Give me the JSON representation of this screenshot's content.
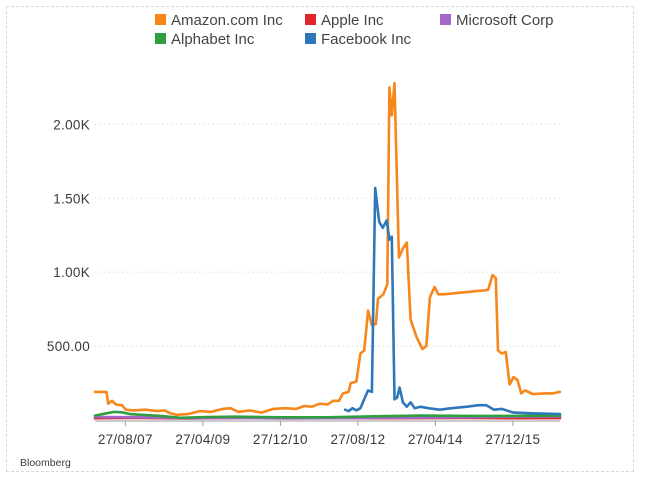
{
  "source": "Bloomberg",
  "colors": {
    "amazon": "#f7861b",
    "apple": "#e0262b",
    "microsoft": "#a566c9",
    "alphabet": "#2f9e3e",
    "facebook": "#2e77b8",
    "grid": "#dcdcdc",
    "axis": "#9a9a9a"
  },
  "chart_data": {
    "type": "line",
    "title": "",
    "xlabel": "",
    "ylabel": "",
    "ylim": [
      0,
      2300
    ],
    "y_ticks": [
      500,
      1000,
      1500,
      2000
    ],
    "y_tick_labels": [
      "500.00",
      "1.00K",
      "1.50K",
      "2.00K"
    ],
    "x_range": [
      "2007-01-01",
      "2016-12-31"
    ],
    "x_ticks": [
      "2007-08-27",
      "2009-04-27",
      "2010-12-27",
      "2012-08-27",
      "2014-04-27",
      "2015-12-27"
    ],
    "x_tick_labels": [
      "27/08/07",
      "27/04/09",
      "27/12/10",
      "27/08/12",
      "27/04/14",
      "27/12/15"
    ],
    "grid": "horizontal dotted",
    "legend_position": "top",
    "series": [
      {
        "name": "Amazon.com Inc",
        "color": "#f7861b",
        "points": [
          [
            "2007-01-01",
            190
          ],
          [
            "2007-04-01",
            190
          ],
          [
            "2007-04-15",
            110
          ],
          [
            "2007-05-15",
            130
          ],
          [
            "2007-06-15",
            105
          ],
          [
            "2007-08-01",
            100
          ],
          [
            "2007-09-01",
            70
          ],
          [
            "2007-11-01",
            65
          ],
          [
            "2008-02-01",
            70
          ],
          [
            "2008-05-01",
            60
          ],
          [
            "2008-07-01",
            65
          ],
          [
            "2008-08-15",
            45
          ],
          [
            "2008-10-01",
            35
          ],
          [
            "2009-01-01",
            40
          ],
          [
            "2009-04-01",
            60
          ],
          [
            "2009-07-01",
            55
          ],
          [
            "2009-10-01",
            75
          ],
          [
            "2009-12-01",
            80
          ],
          [
            "2010-02-01",
            55
          ],
          [
            "2010-05-01",
            65
          ],
          [
            "2010-08-01",
            50
          ],
          [
            "2010-11-01",
            75
          ],
          [
            "2011-02-01",
            80
          ],
          [
            "2011-05-01",
            75
          ],
          [
            "2011-07-01",
            95
          ],
          [
            "2011-09-01",
            90
          ],
          [
            "2011-11-01",
            110
          ],
          [
            "2012-01-01",
            105
          ],
          [
            "2012-02-15",
            130
          ],
          [
            "2012-04-01",
            130
          ],
          [
            "2012-05-01",
            180
          ],
          [
            "2012-06-15",
            190
          ],
          [
            "2012-07-01",
            250
          ],
          [
            "2012-08-15",
            260
          ],
          [
            "2012-09-15",
            450
          ],
          [
            "2012-10-15",
            470
          ],
          [
            "2012-11-15",
            740
          ],
          [
            "2012-12-15",
            640
          ],
          [
            "2013-01-15",
            650
          ],
          [
            "2013-02-01",
            820
          ],
          [
            "2013-03-15",
            850
          ],
          [
            "2013-04-15",
            920
          ],
          [
            "2013-05-01",
            2250
          ],
          [
            "2013-05-20",
            2060
          ],
          [
            "2013-06-10",
            2280
          ],
          [
            "2013-07-15",
            1100
          ],
          [
            "2013-08-15",
            1160
          ],
          [
            "2013-09-15",
            1200
          ],
          [
            "2013-10-15",
            680
          ],
          [
            "2013-12-01",
            560
          ],
          [
            "2014-01-15",
            480
          ],
          [
            "2014-02-15",
            500
          ],
          [
            "2014-03-15",
            830
          ],
          [
            "2014-04-20",
            900
          ],
          [
            "2014-05-20",
            850
          ],
          [
            "2014-07-01",
            850
          ],
          [
            "2015-06-15",
            880
          ],
          [
            "2015-07-20",
            980
          ],
          [
            "2015-08-15",
            960
          ],
          [
            "2015-09-01",
            470
          ],
          [
            "2015-10-01",
            450
          ],
          [
            "2015-11-01",
            460
          ],
          [
            "2015-12-01",
            240
          ],
          [
            "2016-01-01",
            290
          ],
          [
            "2016-02-01",
            270
          ],
          [
            "2016-03-01",
            180
          ],
          [
            "2016-04-01",
            200
          ],
          [
            "2016-06-01",
            175
          ],
          [
            "2016-09-01",
            180
          ],
          [
            "2016-11-01",
            180
          ],
          [
            "2016-12-31",
            190
          ]
        ]
      },
      {
        "name": "Apple Inc",
        "color": "#e0262b",
        "points": [
          [
            "2007-01-01",
            12
          ],
          [
            "2008-01-01",
            14
          ],
          [
            "2009-01-01",
            10
          ],
          [
            "2010-01-01",
            14
          ],
          [
            "2011-01-01",
            15
          ],
          [
            "2012-01-01",
            14
          ],
          [
            "2013-01-01",
            12
          ],
          [
            "2014-01-01",
            13
          ],
          [
            "2015-01-01",
            14
          ],
          [
            "2016-01-01",
            12
          ],
          [
            "2016-12-31",
            13
          ]
        ]
      },
      {
        "name": "Microsoft Corp",
        "color": "#a566c9",
        "points": [
          [
            "2007-01-01",
            20
          ],
          [
            "2008-01-01",
            18
          ],
          [
            "2009-01-01",
            12
          ],
          [
            "2010-01-01",
            14
          ],
          [
            "2011-01-01",
            11
          ],
          [
            "2012-01-01",
            12
          ],
          [
            "2013-01-01",
            14
          ],
          [
            "2014-01-01",
            16
          ],
          [
            "2015-01-01",
            18
          ],
          [
            "2016-01-01",
            22
          ],
          [
            "2016-12-31",
            24
          ]
        ]
      },
      {
        "name": "Alphabet Inc",
        "color": "#2f9e3e",
        "points": [
          [
            "2007-01-01",
            30
          ],
          [
            "2007-04-01",
            45
          ],
          [
            "2007-06-01",
            55
          ],
          [
            "2007-08-01",
            52
          ],
          [
            "2007-10-01",
            40
          ],
          [
            "2008-01-01",
            35
          ],
          [
            "2008-06-01",
            28
          ],
          [
            "2008-11-01",
            15
          ],
          [
            "2009-06-01",
            20
          ],
          [
            "2010-01-01",
            22
          ],
          [
            "2011-01-01",
            18
          ],
          [
            "2012-01-01",
            18
          ],
          [
            "2013-01-01",
            25
          ],
          [
            "2014-01-01",
            30
          ],
          [
            "2015-01-01",
            28
          ],
          [
            "2016-01-01",
            28
          ],
          [
            "2016-12-31",
            30
          ]
        ]
      },
      {
        "name": "Facebook Inc",
        "color": "#2e77b8",
        "points": [
          [
            "2012-05-18",
            70
          ],
          [
            "2012-06-15",
            60
          ],
          [
            "2012-07-15",
            80
          ],
          [
            "2012-08-15",
            65
          ],
          [
            "2012-09-15",
            80
          ],
          [
            "2012-10-15",
            140
          ],
          [
            "2012-11-15",
            200
          ],
          [
            "2012-12-15",
            190
          ],
          [
            "2013-01-10",
            1570
          ],
          [
            "2013-02-10",
            1340
          ],
          [
            "2013-03-10",
            1300
          ],
          [
            "2013-04-10",
            1350
          ],
          [
            "2013-05-01",
            1220
          ],
          [
            "2013-05-20",
            1240
          ],
          [
            "2013-06-10",
            140
          ],
          [
            "2013-07-01",
            150
          ],
          [
            "2013-07-20",
            220
          ],
          [
            "2013-08-15",
            120
          ],
          [
            "2013-09-15",
            90
          ],
          [
            "2013-10-15",
            120
          ],
          [
            "2013-11-15",
            80
          ],
          [
            "2014-01-01",
            90
          ],
          [
            "2014-03-01",
            80
          ],
          [
            "2014-06-01",
            70
          ],
          [
            "2014-09-01",
            80
          ],
          [
            "2015-01-01",
            90
          ],
          [
            "2015-04-01",
            100
          ],
          [
            "2015-06-01",
            100
          ],
          [
            "2015-08-01",
            70
          ],
          [
            "2015-10-01",
            75
          ],
          [
            "2016-01-01",
            50
          ],
          [
            "2016-06-01",
            45
          ],
          [
            "2016-12-31",
            40
          ]
        ]
      }
    ]
  }
}
